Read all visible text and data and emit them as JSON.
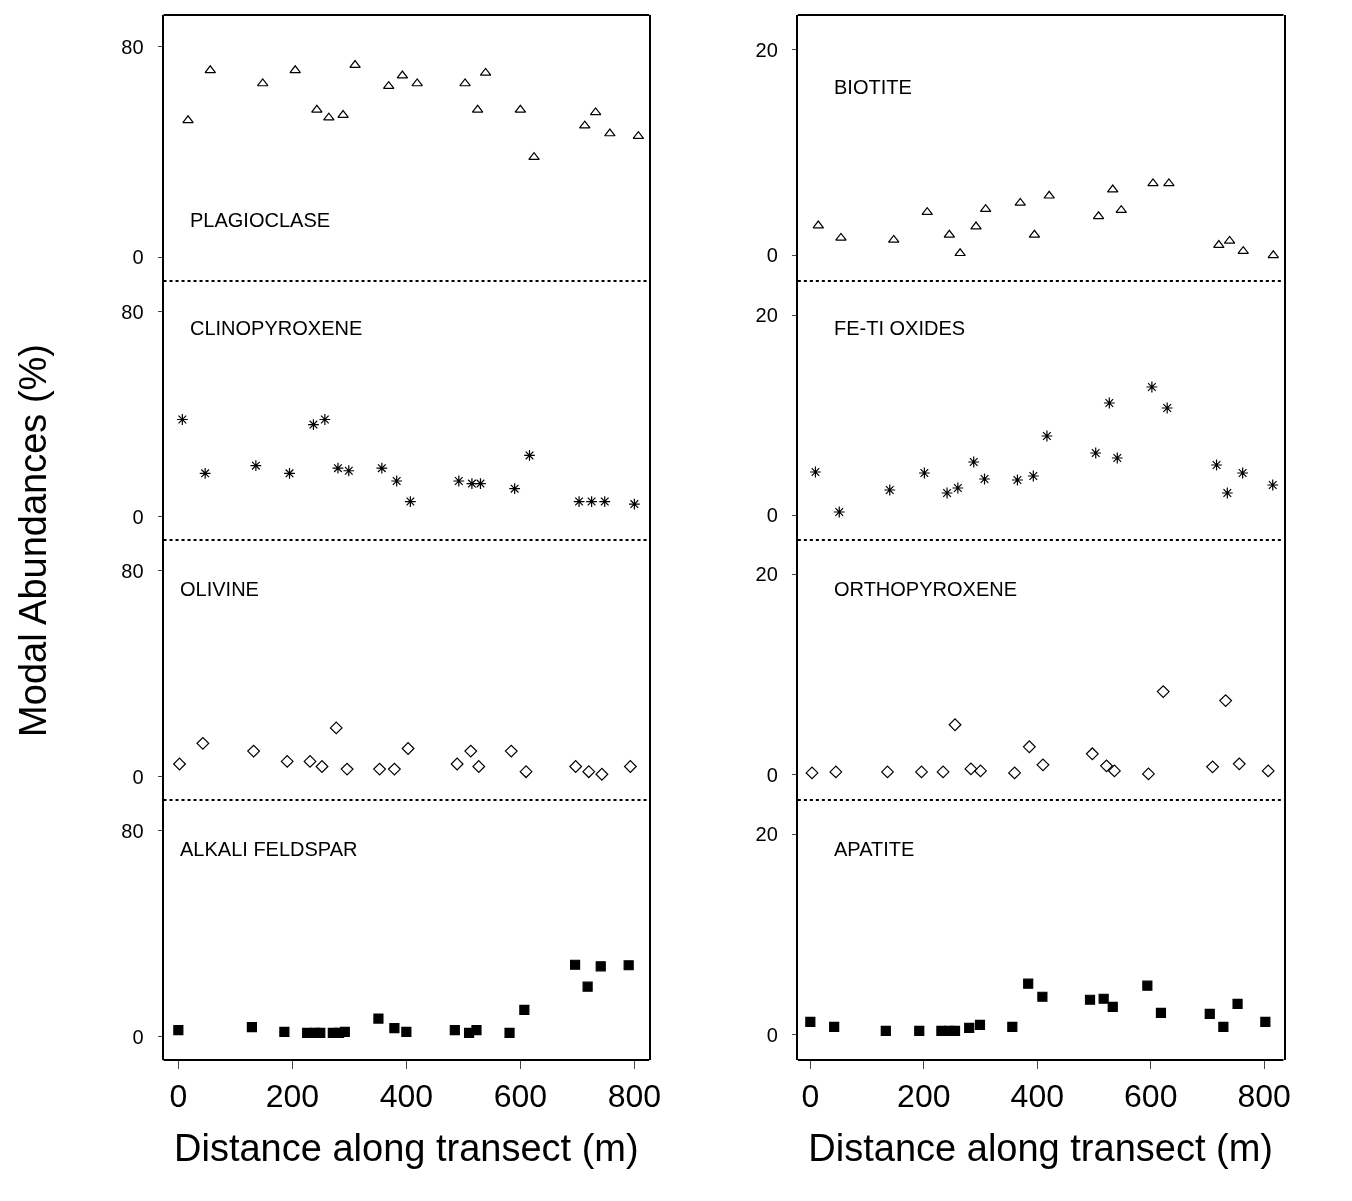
{
  "chart_data": [
    {
      "type": "scatter",
      "title": "PLAGIOCLASE",
      "ylabel": "Modal Abundances (%)",
      "marker": "triangle",
      "color": "#000000",
      "tick_labels": "y",
      "xlim": [
        -26,
        826
      ],
      "ylim": [
        -9,
        92
      ],
      "yticks": [
        0,
        80
      ],
      "x": [
        17,
        56,
        148,
        205,
        243,
        264,
        289,
        310,
        369,
        393,
        419,
        503,
        525,
        539,
        600,
        624,
        713,
        732,
        757,
        807
      ],
      "values": [
        52,
        71,
        66,
        71,
        56,
        53,
        54,
        73,
        65,
        69,
        66,
        66,
        56,
        70,
        56,
        38,
        50,
        55,
        47,
        46
      ]
    },
    {
      "type": "scatter",
      "title": "BIOTITE",
      "marker": "triangle",
      "color": "#000000",
      "tick_labels": "y",
      "xlim": [
        -22,
        834
      ],
      "ylim": [
        -2.5,
        23.4
      ],
      "yticks": [
        0,
        20
      ],
      "x": [
        14,
        54,
        147,
        206,
        245,
        264,
        292,
        309,
        370,
        395,
        421,
        508,
        533,
        548,
        604,
        632,
        720,
        739,
        763,
        816
      ],
      "values": [
        2.9,
        1.7,
        1.5,
        4.2,
        2.0,
        0.2,
        2.8,
        4.5,
        5.1,
        2.0,
        5.8,
        3.8,
        6.4,
        4.4,
        7.0,
        7.0,
        1.0,
        1.4,
        0.4,
        0
      ]
    },
    {
      "type": "scatter",
      "title": "CLINOPYROXENE",
      "marker": "cross",
      "color": "#000000",
      "tick_labels": "y",
      "xlim": [
        -26,
        826
      ],
      "ylim": [
        -9,
        92
      ],
      "yticks": [
        0,
        80
      ],
      "x": [
        7,
        47,
        136,
        195,
        237,
        257,
        280,
        299,
        357,
        383,
        407,
        492,
        515,
        530,
        590,
        616,
        703,
        725,
        748,
        800
      ],
      "values": [
        38,
        17,
        20,
        17,
        36,
        38,
        19,
        18,
        19,
        14,
        6,
        14,
        13,
        13,
        11,
        24,
        6,
        6,
        6,
        5
      ]
    },
    {
      "type": "scatter",
      "title": "FE-TI OXIDES",
      "marker": "cross",
      "color": "#000000",
      "tick_labels": "y",
      "xlim": [
        -22,
        834
      ],
      "ylim": [
        -2.5,
        23.4
      ],
      "yticks": [
        0,
        20
      ],
      "x": [
        9,
        51,
        140,
        201,
        241,
        260,
        288,
        307,
        365,
        393,
        417,
        503,
        527,
        541,
        602,
        629,
        716,
        735,
        762,
        815
      ],
      "values": [
        4.3,
        0.3,
        2.5,
        4.2,
        2.2,
        2.7,
        5.3,
        3.6,
        3.5,
        3.9,
        7.9,
        6.2,
        11.2,
        5.7,
        12.8,
        10.7,
        5.0,
        2.2,
        4.2,
        3.0
      ]
    },
    {
      "type": "scatter",
      "title": "OLIVINE",
      "marker": "diamond",
      "color": "#000000",
      "tick_labels": "y",
      "xlim": [
        -26,
        826
      ],
      "ylim": [
        -9,
        92
      ],
      "yticks": [
        0,
        80
      ],
      "x": [
        2,
        43,
        132,
        191,
        231,
        252,
        277,
        296,
        353,
        379,
        403,
        489,
        513,
        527,
        584,
        610,
        697,
        720,
        743,
        793
      ],
      "values": [
        5,
        13,
        10,
        6,
        6,
        4,
        19,
        3,
        3,
        3,
        11,
        5,
        10,
        4,
        10,
        2,
        4,
        2,
        1,
        4
      ]
    },
    {
      "type": "scatter",
      "title": "ORTHOPYROXENE",
      "marker": "diamond",
      "color": "#000000",
      "tick_labels": "y",
      "xlim": [
        -22,
        834
      ],
      "ylim": [
        -2.5,
        23.4
      ],
      "yticks": [
        0,
        20
      ],
      "x": [
        3,
        45,
        136,
        196,
        234,
        255,
        283,
        300,
        360,
        386,
        410,
        497,
        522,
        536,
        596,
        622,
        709,
        732,
        756,
        807
      ],
      "values": [
        0.2,
        0.3,
        0.3,
        0.3,
        0.3,
        5.0,
        0.6,
        0.4,
        0.2,
        2.8,
        1.0,
        2.1,
        0.9,
        0.4,
        0.1,
        8.3,
        0.8,
        7.4,
        1.1,
        0.4
      ]
    },
    {
      "type": "scatter",
      "title": "ALKALI FELDSPAR",
      "xlabel": "Distance along transect (m)",
      "marker": "square",
      "color": "#000000",
      "xlim": [
        -26,
        826
      ],
      "ylim": [
        -9,
        92
      ],
      "yticks": [
        0,
        80
      ],
      "xticks": [
        0,
        200,
        400,
        600,
        800
      ],
      "x": [
        0,
        129,
        186,
        226,
        240,
        249,
        271,
        282,
        292,
        351,
        379,
        400,
        485,
        510,
        523,
        581,
        607,
        696,
        718,
        741,
        790
      ],
      "values": [
        2.6,
        3.8,
        1.9,
        1.5,
        1.5,
        1.5,
        1.5,
        1.5,
        1.9,
        7.1,
        3.4,
        1.9,
        2.6,
        1.5,
        2.6,
        1.5,
        10.5,
        28,
        19.5,
        27.4,
        27.8
      ]
    },
    {
      "type": "scatter",
      "title": "APATITE",
      "xlabel": "Distance along transect (m)",
      "marker": "square",
      "color": "#000000",
      "xlim": [
        -22,
        834
      ],
      "ylim": [
        -2.5,
        23.4
      ],
      "yticks": [
        0,
        20
      ],
      "xticks": [
        0,
        200,
        400,
        600,
        800
      ],
      "x": [
        0,
        42,
        133,
        192,
        231,
        245,
        255,
        280,
        299,
        356,
        384,
        409,
        493,
        517,
        533,
        594,
        618,
        704,
        728,
        753,
        802
      ],
      "values": [
        1.3,
        0.8,
        0.4,
        0.4,
        0.4,
        0.4,
        0.4,
        0.7,
        1.0,
        0.8,
        5.1,
        3.8,
        3.5,
        3.6,
        2.8,
        4.9,
        2.2,
        2.1,
        0.8,
        3.1,
        1.3
      ]
    }
  ]
}
